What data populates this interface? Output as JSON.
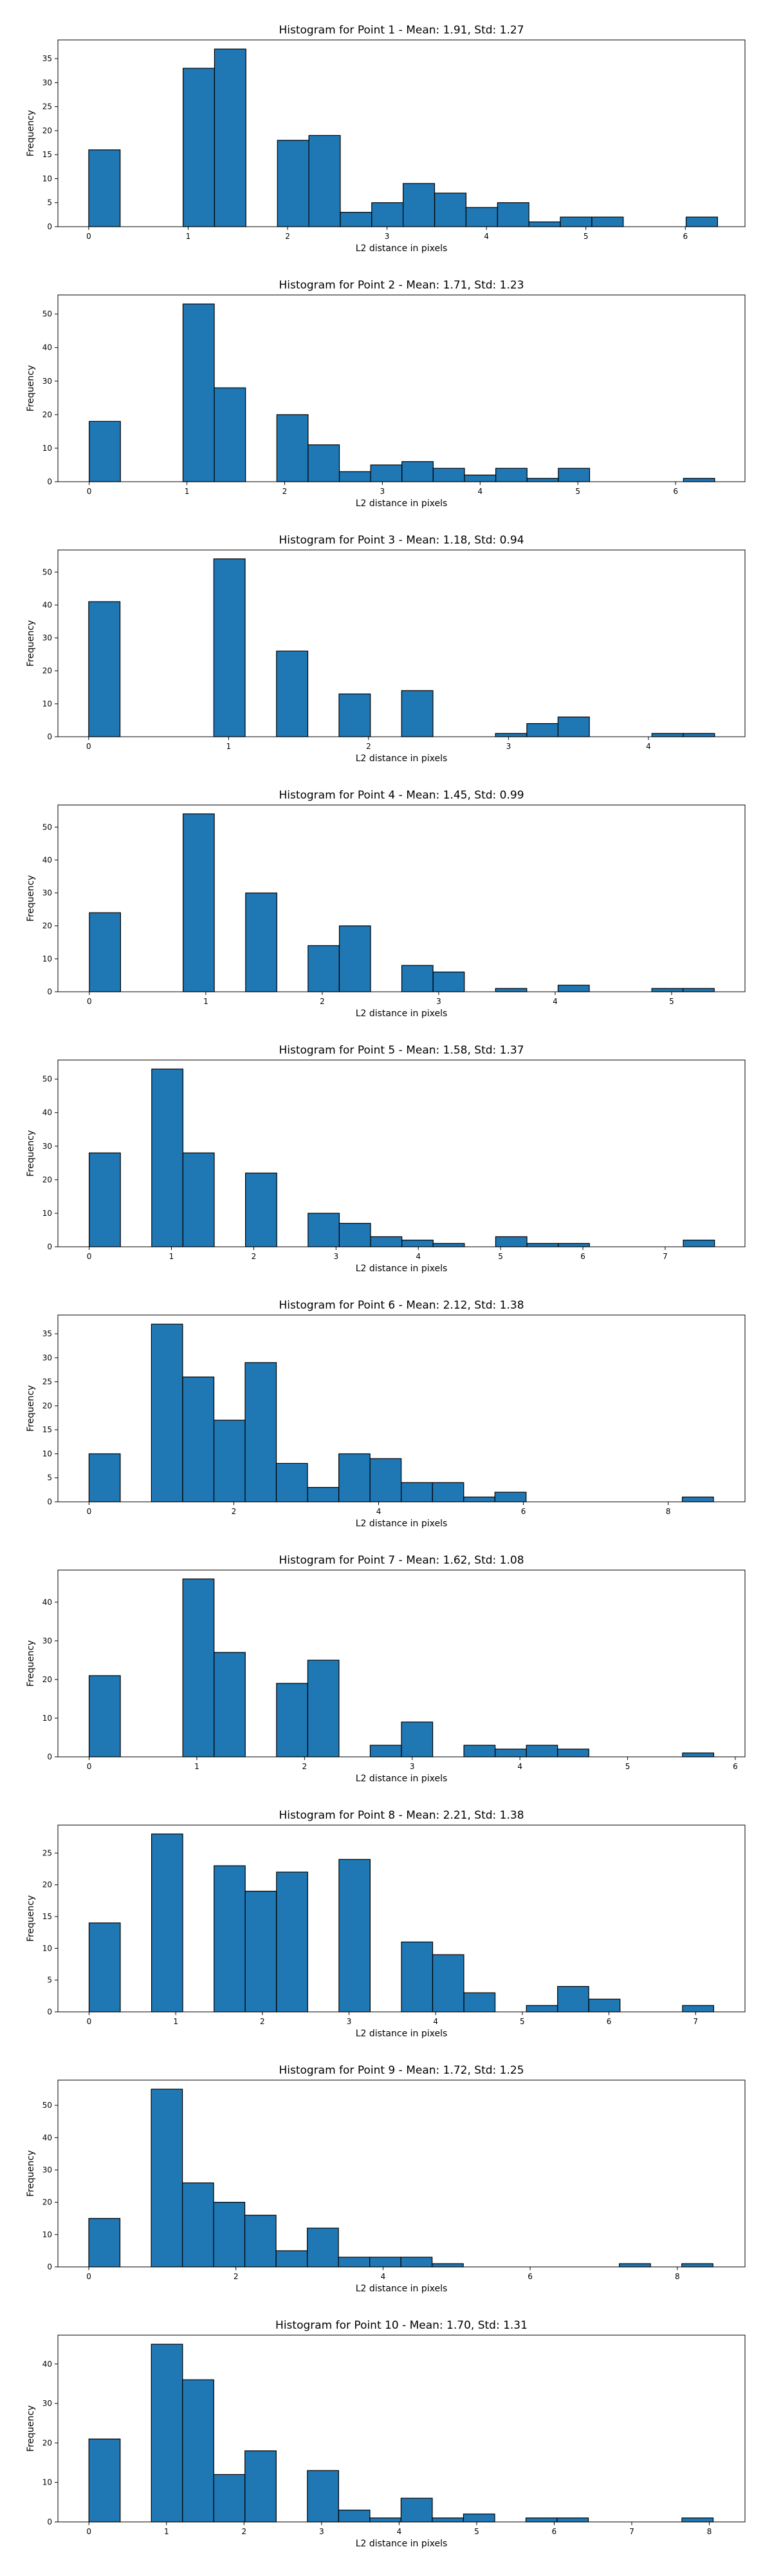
{
  "chart_data": [
    {
      "type": "bar",
      "title": "Histogram for Point 1 - Mean: 1.91, Std: 1.27",
      "xlabel": "L2 distance in pixels",
      "ylabel": "Frequency",
      "xlim": [
        -0.31,
        6.6
      ],
      "ylim": [
        0,
        38.9
      ],
      "xticks": [
        0,
        1,
        2,
        3,
        4,
        5,
        6
      ],
      "yticks": [
        0,
        5,
        10,
        15,
        20,
        25,
        30,
        35
      ],
      "bin_width": 0.316,
      "bins_left": [
        0,
        0.949,
        1.265,
        1.898,
        2.214,
        2.53,
        2.846,
        3.162,
        3.479,
        3.795,
        4.111,
        4.427,
        4.743,
        5.06,
        6.008
      ],
      "values": [
        16,
        33,
        37,
        18,
        19,
        3,
        5,
        9,
        7,
        4,
        5,
        1,
        2,
        2,
        2
      ]
    },
    {
      "type": "bar",
      "title": "Histogram for Point 2 - Mean: 1.71, Std: 1.23",
      "xlabel": "L2 distance in pixels",
      "ylabel": "Frequency",
      "xlim": [
        -0.32,
        6.71
      ],
      "ylim": [
        0,
        55.7
      ],
      "xticks": [
        0,
        1,
        2,
        3,
        4,
        5,
        6
      ],
      "yticks": [
        0,
        10,
        20,
        30,
        40,
        50
      ],
      "bin_width": 0.32,
      "bins_left": [
        0,
        0.96,
        1.28,
        1.92,
        2.24,
        2.56,
        2.88,
        3.2,
        3.52,
        3.84,
        4.16,
        4.48,
        4.8,
        6.08
      ],
      "values": [
        18,
        53,
        28,
        20,
        11,
        3,
        5,
        6,
        4,
        2,
        4,
        1,
        4,
        1
      ]
    },
    {
      "type": "bar",
      "title": "Histogram for Point 3 - Mean: 1.18, Std: 0.94",
      "xlabel": "L2 distance in pixels",
      "ylabel": "Frequency",
      "xlim": [
        -0.22,
        4.69
      ],
      "ylim": [
        0,
        56.7
      ],
      "xticks": [
        0,
        1,
        2,
        3,
        4
      ],
      "yticks": [
        0,
        10,
        20,
        30,
        40,
        50
      ],
      "bin_width": 0.224,
      "bins_left": [
        0,
        0.894,
        1.342,
        1.789,
        2.236,
        2.907,
        3.131,
        3.354,
        4.025,
        4.249
      ],
      "values": [
        41,
        54,
        26,
        13,
        14,
        1,
        4,
        6,
        1,
        1
      ]
    },
    {
      "type": "bar",
      "title": "Histogram for Point 4 - Mean: 1.45, Std: 0.99",
      "xlabel": "L2 distance in pixels",
      "ylabel": "Frequency",
      "xlim": [
        -0.27,
        5.63
      ],
      "ylim": [
        0,
        56.7
      ],
      "xticks": [
        0,
        1,
        2,
        3,
        4,
        5
      ],
      "yticks": [
        0,
        10,
        20,
        30,
        40,
        50
      ],
      "bin_width": 0.268,
      "bins_left": [
        0,
        0.805,
        1.342,
        1.878,
        2.147,
        2.683,
        2.952,
        3.488,
        4.025,
        4.83,
        5.098
      ],
      "values": [
        24,
        54,
        30,
        14,
        20,
        8,
        6,
        1,
        2,
        1,
        1
      ]
    },
    {
      "type": "bar",
      "title": "Histogram for Point 5 - Mean: 1.58, Std: 1.37",
      "xlabel": "L2 distance in pixels",
      "ylabel": "Frequency",
      "xlim": [
        -0.38,
        7.97
      ],
      "ylim": [
        0,
        55.7
      ],
      "xticks": [
        0,
        1,
        2,
        3,
        4,
        5,
        6,
        7
      ],
      "yticks": [
        0,
        10,
        20,
        30,
        40,
        50
      ],
      "bin_width": 0.38,
      "bins_left": [
        0,
        0.76,
        1.14,
        1.9,
        2.66,
        3.04,
        3.42,
        3.8,
        4.18,
        4.94,
        5.32,
        5.7,
        7.22
      ],
      "values": [
        28,
        53,
        28,
        22,
        10,
        7,
        3,
        2,
        1,
        3,
        1,
        1,
        2
      ]
    },
    {
      "type": "bar",
      "title": "Histogram for Point 6 - Mean: 2.12, Std: 1.38",
      "xlabel": "L2 distance in pixels",
      "ylabel": "Frequency",
      "xlim": [
        -0.43,
        9.06
      ],
      "ylim": [
        0,
        38.9
      ],
      "xticks": [
        0,
        2,
        4,
        6,
        8
      ],
      "yticks": [
        0,
        5,
        10,
        15,
        20,
        25,
        30,
        35
      ],
      "bin_width": 0.431,
      "bins_left": [
        0,
        0.862,
        1.294,
        1.725,
        2.156,
        2.587,
        3.019,
        3.45,
        3.881,
        4.312,
        4.744,
        5.175,
        5.606,
        8.194
      ],
      "values": [
        10,
        37,
        26,
        17,
        29,
        8,
        3,
        10,
        9,
        4,
        4,
        1,
        2,
        1
      ]
    },
    {
      "type": "bar",
      "title": "Histogram for Point 7 - Mean: 1.62, Std: 1.08",
      "xlabel": "L2 distance in pixels",
      "ylabel": "Frequency",
      "xlim": [
        -0.29,
        6.09
      ],
      "ylim": [
        0,
        48.3
      ],
      "xticks": [
        0,
        1,
        2,
        3,
        4,
        5,
        6
      ],
      "yticks": [
        0,
        10,
        20,
        30,
        40
      ],
      "bin_width": 0.29,
      "bins_left": [
        0,
        0.87,
        1.16,
        1.74,
        2.03,
        2.61,
        2.9,
        3.48,
        3.77,
        4.06,
        4.35,
        5.51
      ],
      "values": [
        21,
        46,
        27,
        19,
        25,
        3,
        9,
        3,
        2,
        3,
        2,
        1
      ]
    },
    {
      "type": "bar",
      "title": "Histogram for Point 8 - Mean: 2.21, Std: 1.38",
      "xlabel": "L2 distance in pixels",
      "ylabel": "Frequency",
      "xlim": [
        -0.36,
        7.57
      ],
      "ylim": [
        0,
        29.4
      ],
      "xticks": [
        0,
        1,
        2,
        3,
        4,
        5,
        6,
        7
      ],
      "yticks": [
        0,
        5,
        10,
        15,
        20,
        25
      ],
      "bin_width": 0.36,
      "bins_left": [
        0,
        0.721,
        1.442,
        1.802,
        2.163,
        2.884,
        3.605,
        3.965,
        4.326,
        5.047,
        5.407,
        5.768,
        6.849
      ],
      "values": [
        14,
        28,
        23,
        19,
        22,
        24,
        11,
        9,
        3,
        1,
        4,
        2,
        1
      ]
    },
    {
      "type": "bar",
      "title": "Histogram for Point 9 - Mean: 1.72, Std: 1.25",
      "xlabel": "L2 distance in pixels",
      "ylabel": "Frequency",
      "xlim": [
        -0.42,
        8.92
      ],
      "ylim": [
        0,
        57.8
      ],
      "xticks": [
        0,
        2,
        4,
        6,
        8
      ],
      "yticks": [
        0,
        10,
        20,
        30,
        40,
        50
      ],
      "bin_width": 0.424,
      "bins_left": [
        0,
        0.849,
        1.273,
        1.697,
        2.121,
        2.546,
        2.97,
        3.394,
        3.818,
        4.243,
        4.667,
        7.212,
        8.061
      ],
      "values": [
        15,
        55,
        26,
        20,
        16,
        5,
        12,
        3,
        3,
        3,
        1,
        1,
        1
      ]
    },
    {
      "type": "bar",
      "title": "Histogram for Point 10 - Mean: 1.70, Std: 1.31",
      "xlabel": "L2 distance in pixels",
      "ylabel": "Frequency",
      "xlim": [
        -0.4,
        8.46
      ],
      "ylim": [
        0,
        47.3
      ],
      "xticks": [
        0,
        1,
        2,
        3,
        4,
        5,
        6,
        7,
        8
      ],
      "yticks": [
        0,
        10,
        20,
        30,
        40
      ],
      "bin_width": 0.403,
      "bins_left": [
        0,
        0.805,
        1.207,
        1.61,
        2.012,
        2.817,
        3.22,
        3.622,
        4.025,
        4.427,
        4.83,
        5.635,
        6.037,
        7.647
      ],
      "values": [
        21,
        45,
        36,
        12,
        18,
        13,
        3,
        1,
        6,
        1,
        2,
        1,
        1,
        1
      ]
    }
  ]
}
